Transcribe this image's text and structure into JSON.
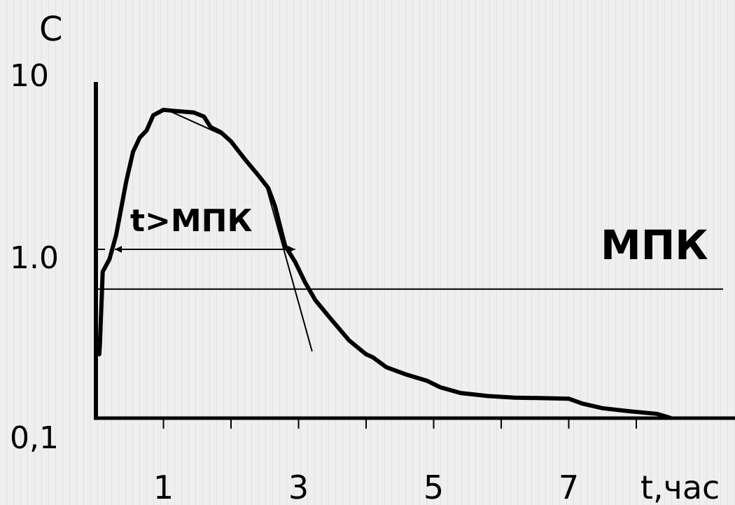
{
  "chart_data": {
    "type": "line",
    "ylabel": "C",
    "xlabel": "t,час",
    "y_scale": "log",
    "ylim": [
      0.1,
      10
    ],
    "xlim": [
      0,
      8.6
    ],
    "y_tick_labels": [
      "10",
      "1.0",
      "0,1"
    ],
    "x_tick_labels": [
      "1",
      "3",
      "5",
      "7"
    ],
    "annotations": {
      "mic_label": "МПК",
      "interval_label": "t>МПК"
    },
    "mic_level": 0.6,
    "series": [
      {
        "x": [
          0.05,
          0.06,
          0.1,
          0.2,
          0.3,
          0.45,
          0.55,
          0.65,
          0.75,
          0.85,
          1.0,
          1.2,
          1.45,
          1.6,
          1.7,
          1.85,
          2.0,
          2.2,
          2.4,
          2.55,
          2.65,
          2.8,
          2.95,
          3.1,
          3.25,
          3.5,
          3.75,
          4.0,
          4.1,
          4.3,
          4.6,
          4.9,
          5.1,
          5.4,
          5.8,
          6.2,
          6.6,
          7.0,
          7.2,
          7.5,
          7.9,
          8.3,
          8.5
        ],
        "y": [
          0.26,
          0.3,
          0.75,
          0.88,
          1.2,
          2.4,
          3.5,
          4.2,
          4.6,
          5.6,
          6.0,
          5.9,
          5.8,
          5.5,
          4.8,
          4.5,
          4.0,
          3.2,
          2.6,
          2.2,
          1.75,
          1.05,
          0.85,
          0.65,
          0.52,
          0.4,
          0.31,
          0.26,
          0.25,
          0.22,
          0.2,
          0.185,
          0.17,
          0.158,
          0.152,
          0.149,
          0.148,
          0.147,
          0.138,
          0.13,
          0.125,
          0.121,
          0.115
        ]
      }
    ]
  }
}
